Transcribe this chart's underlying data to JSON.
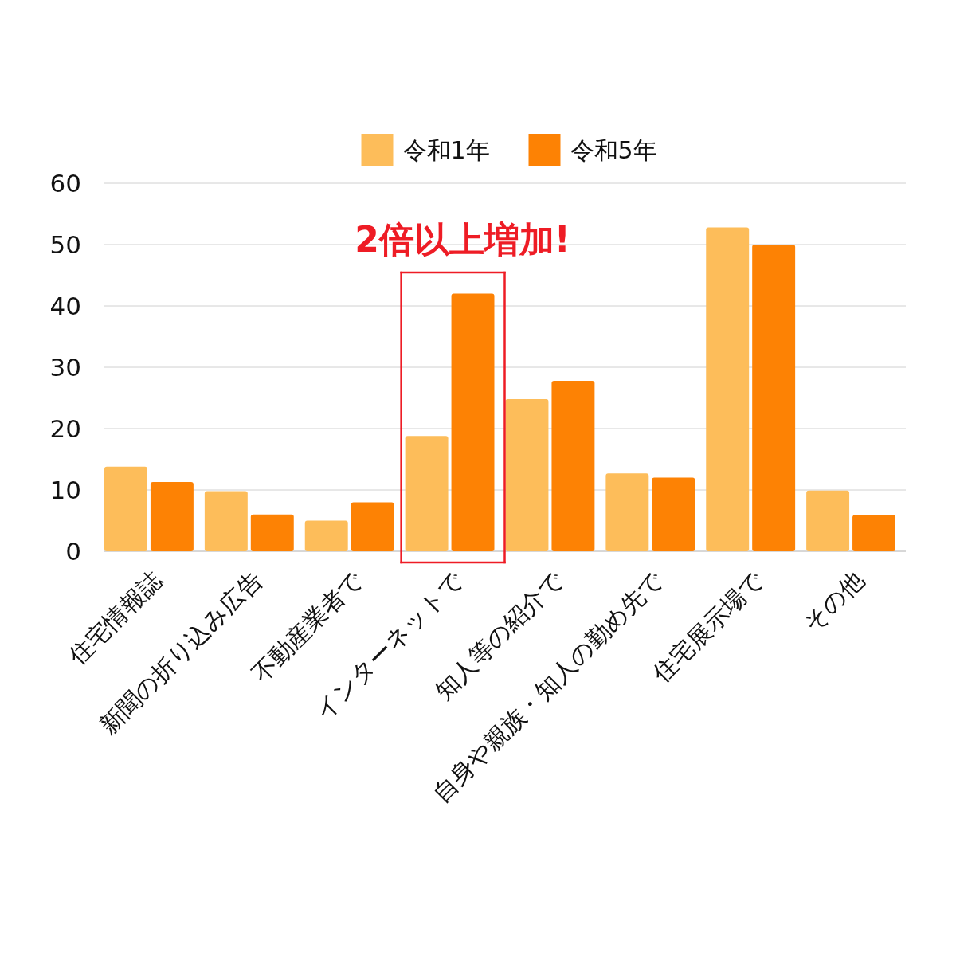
{
  "chart_data": {
    "type": "bar",
    "categories": [
      "住宅情報誌",
      "新聞の折り込み広告",
      "不動産業者で",
      "インターネットで",
      "知人等の紹介で",
      "自身や親族・知人の勤め先で",
      "住宅展示場で",
      "その他"
    ],
    "series": [
      {
        "name": "令和1年",
        "color": "#fdbd5a",
        "values": [
          13.8,
          9.8,
          5.0,
          18.8,
          24.8,
          12.7,
          52.8,
          9.9
        ]
      },
      {
        "name": "令和5年",
        "color": "#fd8204",
        "values": [
          11.3,
          6.0,
          8.0,
          42.0,
          27.8,
          12.0,
          50.0,
          5.9
        ]
      }
    ],
    "ylim": [
      0,
      60
    ],
    "yticks": [
      0,
      10,
      20,
      30,
      40,
      50,
      60
    ],
    "grid": true,
    "legend": "top",
    "annotations": [
      "2倍以上増加!"
    ]
  }
}
